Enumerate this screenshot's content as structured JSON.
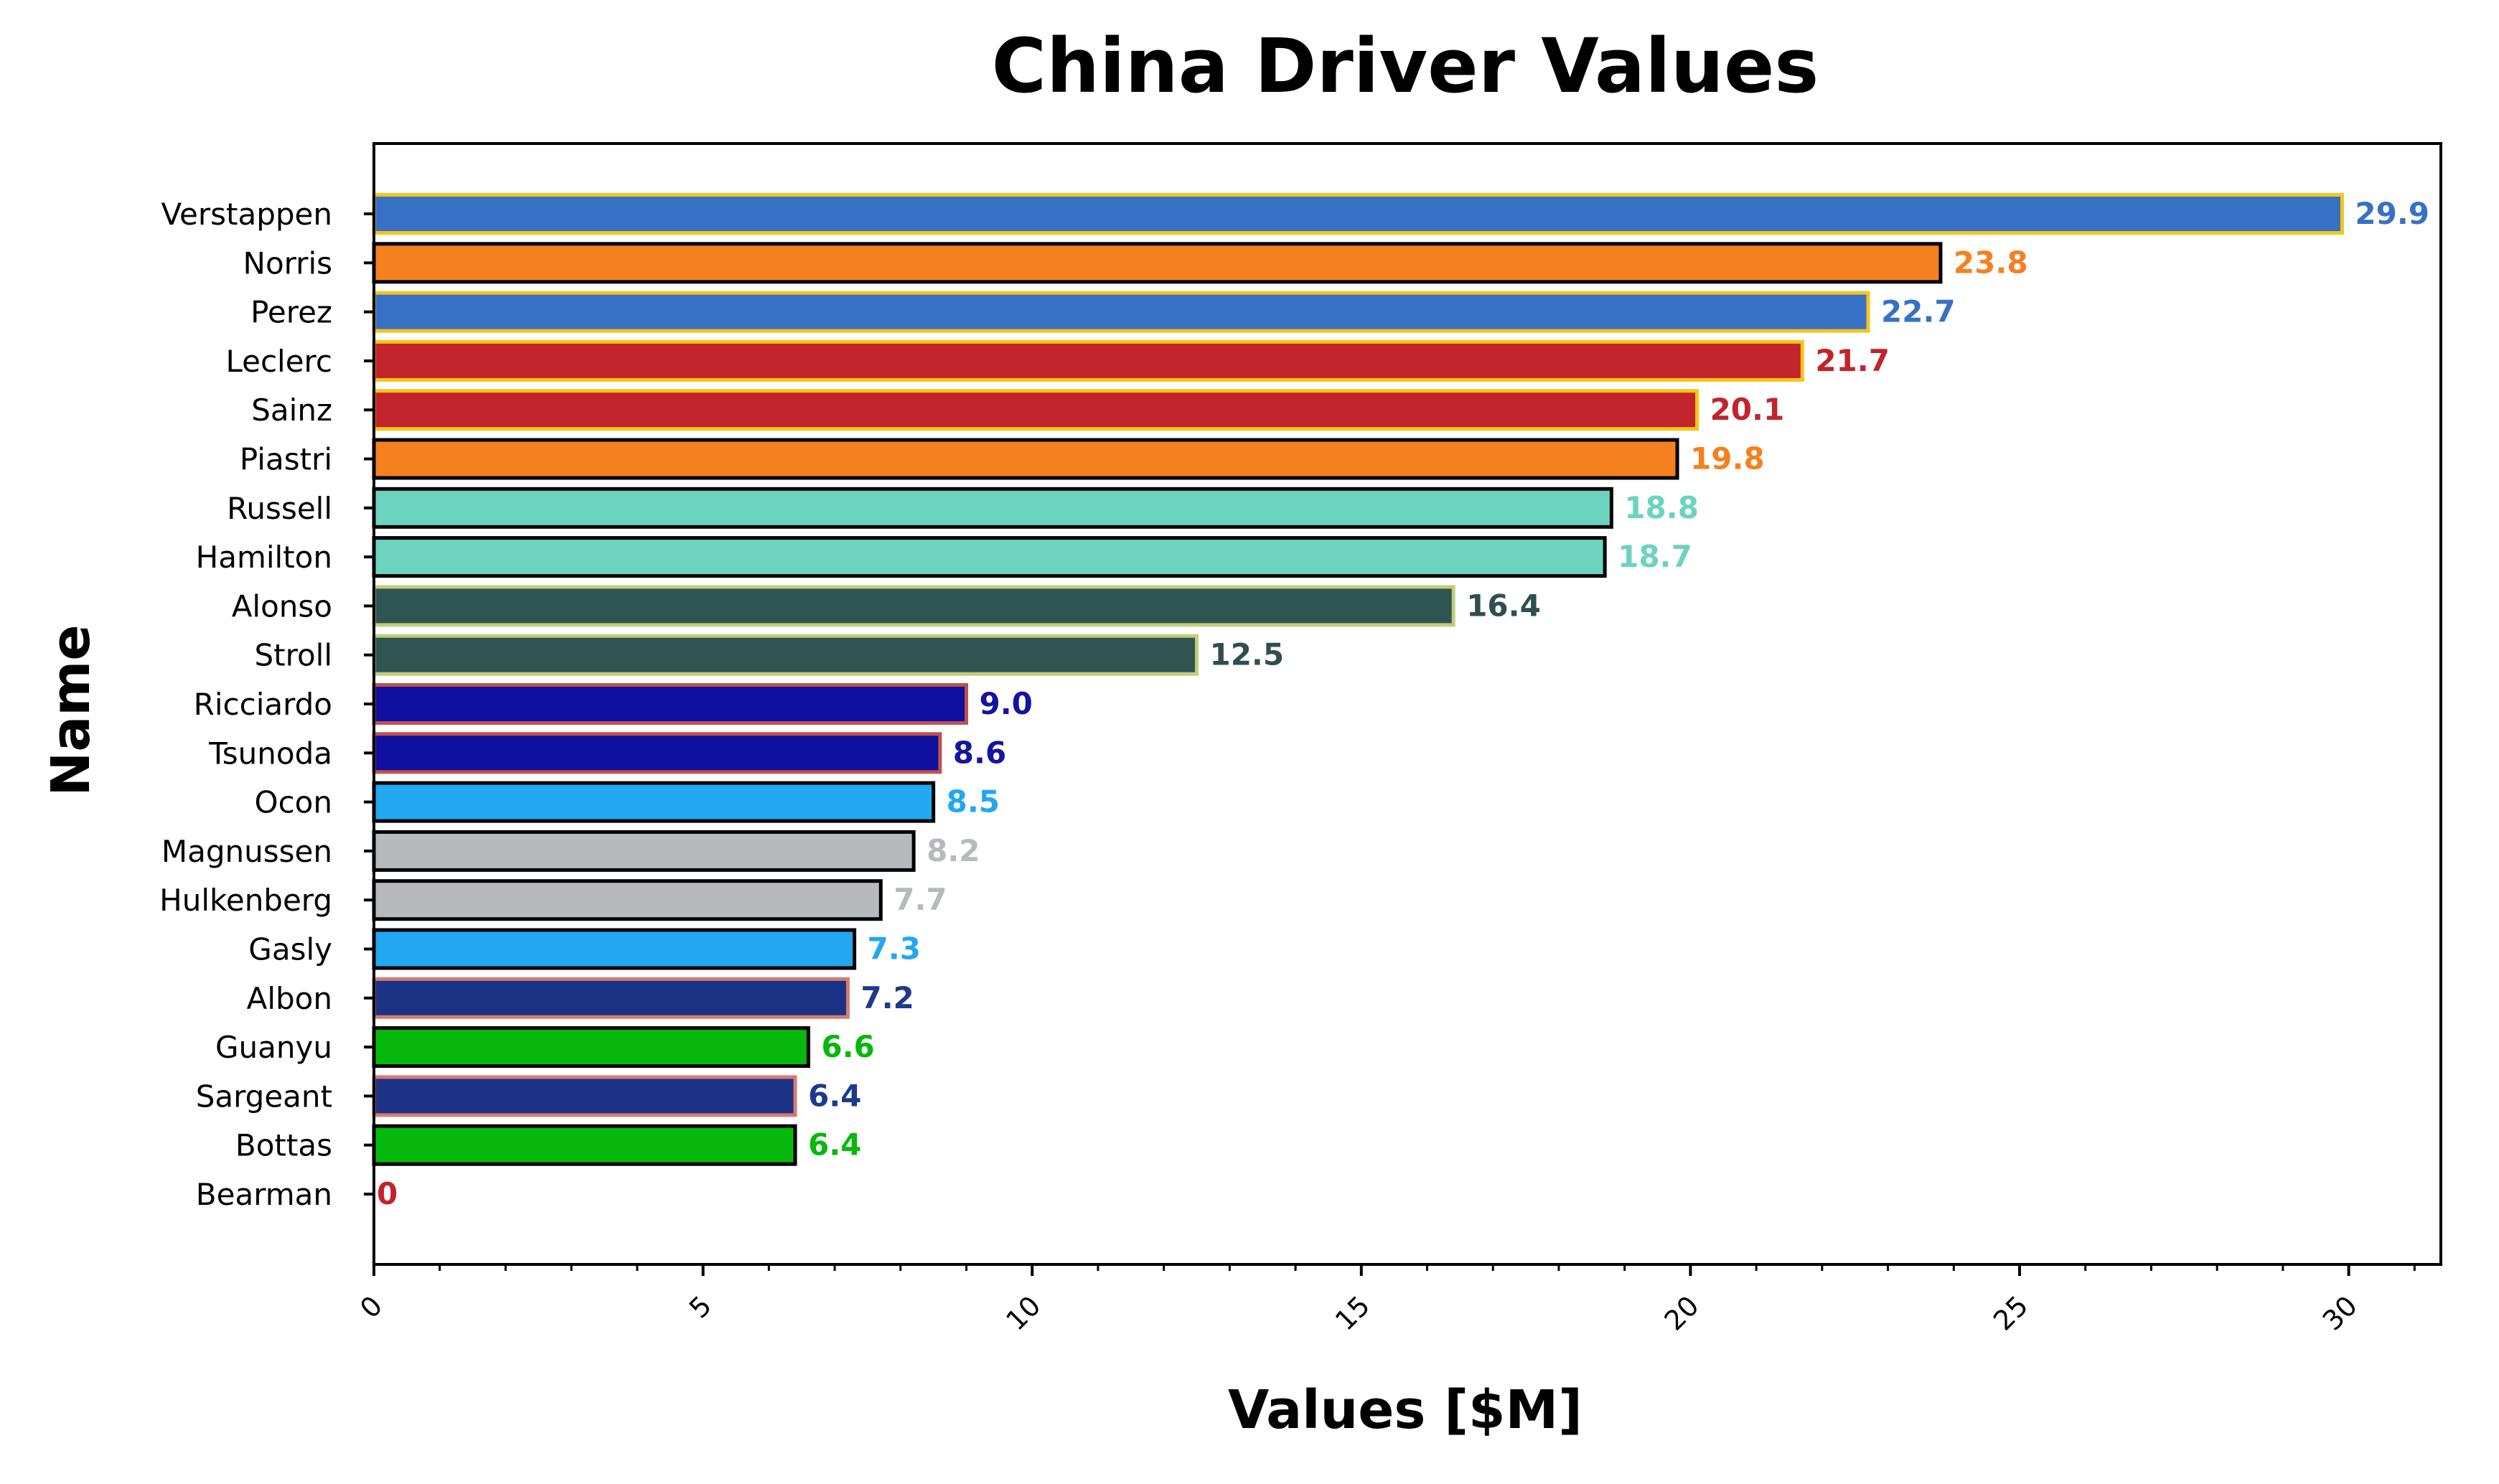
{
  "chart_data": {
    "type": "bar",
    "orientation": "horizontal",
    "title": "China Driver Values",
    "xlabel": "Values [$M]",
    "ylabel": "Name",
    "xlim": [
      0,
      31.4
    ],
    "x_ticks": [
      "0",
      "5",
      "10",
      "15",
      "20",
      "25",
      "30"
    ],
    "grid": false,
    "legend": "none",
    "categories": [
      "Verstappen",
      "Norris",
      "Perez",
      "Leclerc",
      "Sainz",
      "Piastri",
      "Russell",
      "Hamilton",
      "Alonso",
      "Stroll",
      "Ricciardo",
      "Tsunoda",
      "Ocon",
      "Magnussen",
      "Hulkenberg",
      "Gasly",
      "Albon",
      "Guanyu",
      "Sargeant",
      "Bottas",
      "Bearman"
    ],
    "values": [
      29.9,
      23.8,
      22.7,
      21.7,
      20.1,
      19.8,
      18.8,
      18.7,
      16.4,
      12.5,
      9.0,
      8.6,
      8.5,
      8.2,
      7.7,
      7.3,
      7.2,
      6.6,
      6.4,
      6.4,
      0
    ],
    "value_labels": [
      "29.9",
      "23.8",
      "22.7",
      "21.7",
      "20.1",
      "19.8",
      "18.8",
      "18.7",
      "16.4",
      "12.5",
      "9.0",
      "8.6",
      "8.5",
      "8.2",
      "7.7",
      "7.3",
      "7.2",
      "6.6",
      "6.4",
      "6.4",
      "0"
    ],
    "bar_colors": [
      "#3671C6",
      "#F58020",
      "#3671C6",
      "#C1242B",
      "#C1242B",
      "#F58020",
      "#6CD3BF",
      "#6CD3BF",
      "#358C75",
      "#358C75",
      "#1414A0",
      "#1414A0",
      "#2293D1",
      "#B6BABD",
      "#B6BABD",
      "#2293D1",
      "#1E3A8A",
      "#07B80C",
      "#1E3A8A",
      "#07B80C",
      "#C1242B"
    ],
    "edge_colors": [
      "#F5C518",
      "#000000",
      "#F5C518",
      "#F5C518",
      "#F5C518",
      "#000000",
      "#000000",
      "#000000",
      "#C5CC7A",
      "#C5CC7A",
      "#C0504D",
      "#C0504D",
      "#000000",
      "#000000",
      "#000000",
      "#000000",
      "#D97B70",
      "#000000",
      "#D97B70",
      "#000000",
      "#000000"
    ],
    "label_colors": [
      "#3671C6",
      "#F58020",
      "#3671C6",
      "#C1242B",
      "#C1242B",
      "#F58020",
      "#6CD3BF",
      "#6CD3BF",
      "#2F4F4F",
      "#2F4F4F",
      "#1414A0",
      "#1414A0",
      "#22A7F0",
      "#B6BABD",
      "#B6BABD",
      "#22A7F0",
      "#1E3A8A",
      "#07B80C",
      "#1E3A8A",
      "#07B80C",
      "#C1242B"
    ],
    "fill_overrides": {
      "8": "#2F5552",
      "9": "#2F5552",
      "12": "#22A7F0",
      "15": "#22A7F0",
      "10": "#0F0FA0",
      "11": "#0F0FA0",
      "16": "#1C3285",
      "18": "#1C3285"
    }
  }
}
